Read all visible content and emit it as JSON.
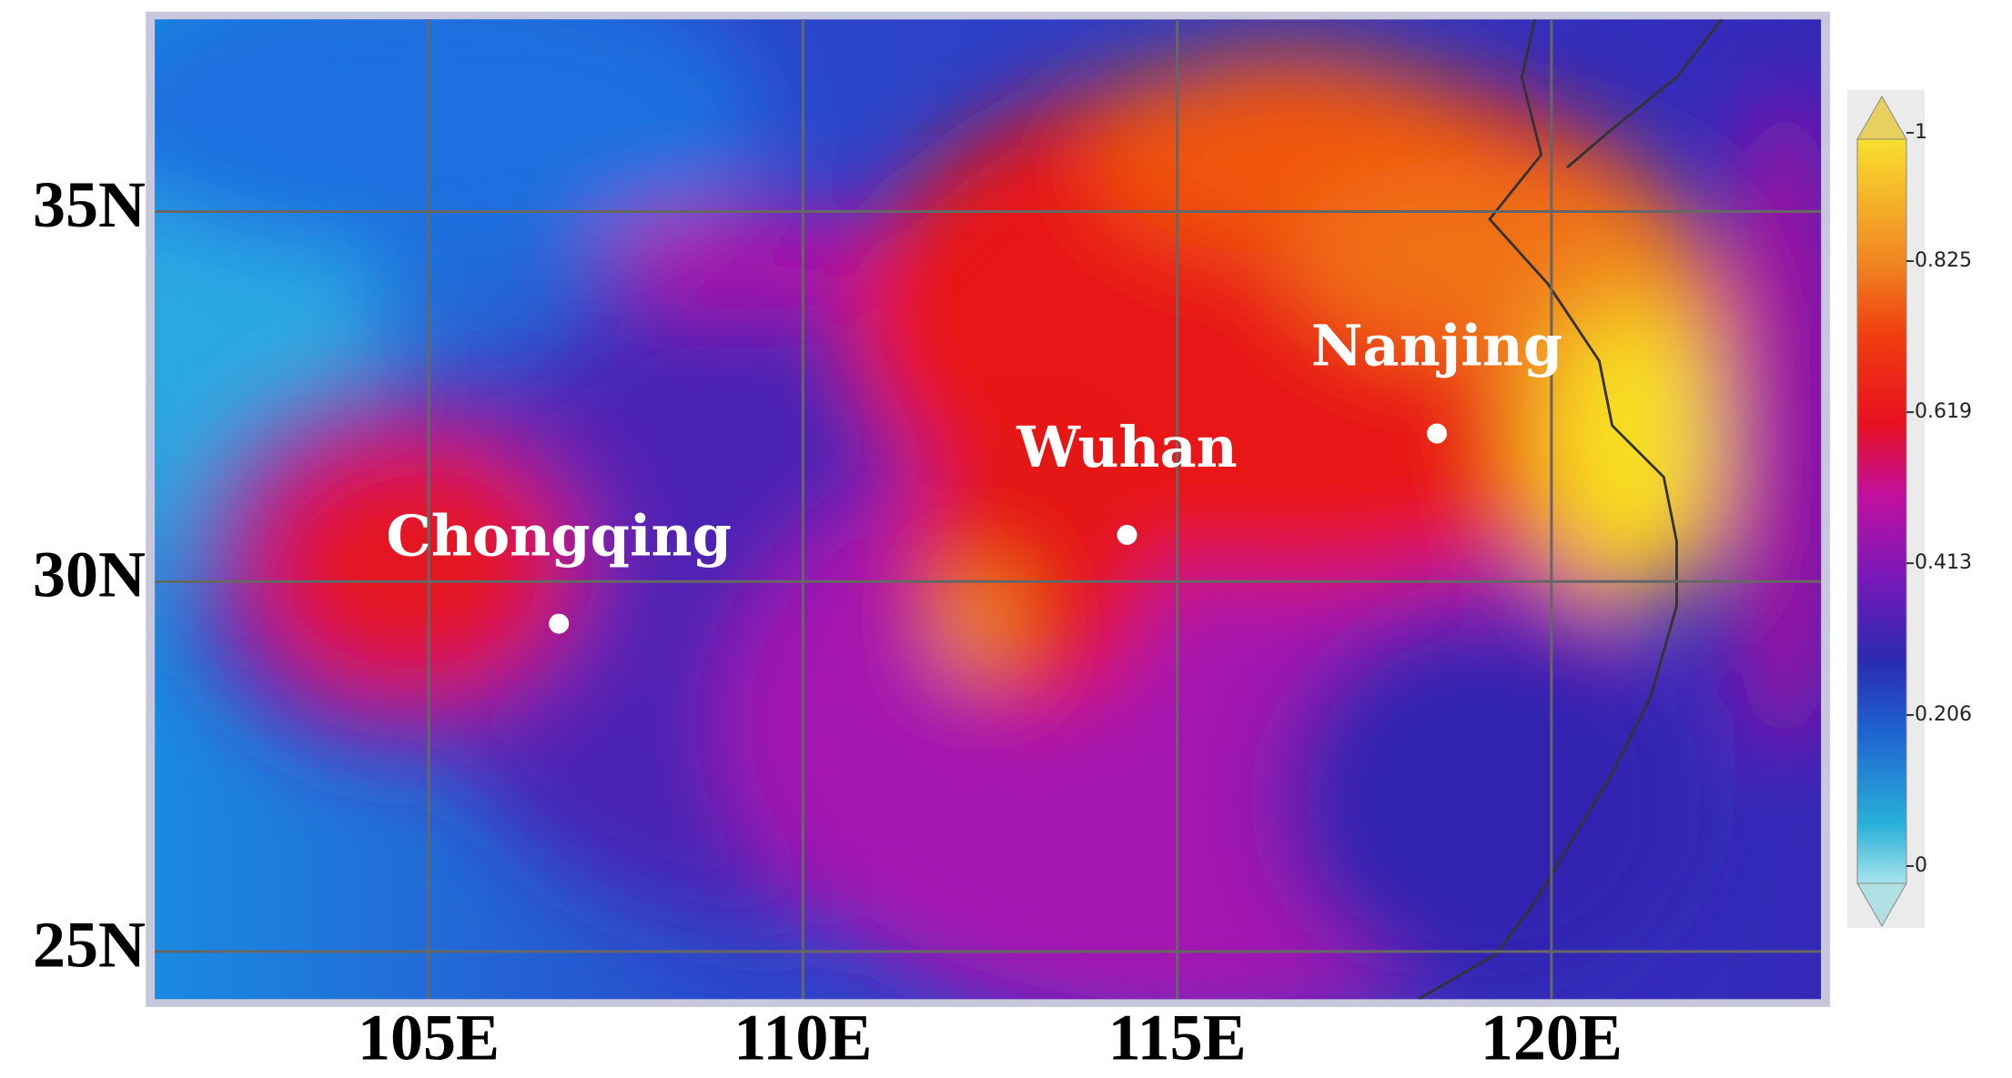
{
  "map": {
    "xlim": [
      101.34,
      123.6
    ],
    "ylim": [
      24.36,
      37.6
    ],
    "xticks": [
      {
        "value": 105,
        "label": "105E"
      },
      {
        "value": 110,
        "label": "110E"
      },
      {
        "value": 115,
        "label": "115E"
      },
      {
        "value": 120,
        "label": "120E"
      }
    ],
    "yticks": [
      {
        "value": 25,
        "label": "25N"
      },
      {
        "value": 30,
        "label": "30N"
      },
      {
        "value": 35,
        "label": "35N"
      }
    ],
    "cities": [
      {
        "name": "Chongqing",
        "lon": 106.74,
        "lat": 29.43
      },
      {
        "name": "Wuhan",
        "lon": 114.33,
        "lat": 30.63
      },
      {
        "name": "Nanjing",
        "lon": 118.47,
        "lat": 32.0
      }
    ],
    "colorbar": {
      "lim": [
        0,
        1
      ],
      "ticks": [
        0,
        0.206,
        0.413,
        0.619,
        0.825,
        1
      ]
    }
  }
}
